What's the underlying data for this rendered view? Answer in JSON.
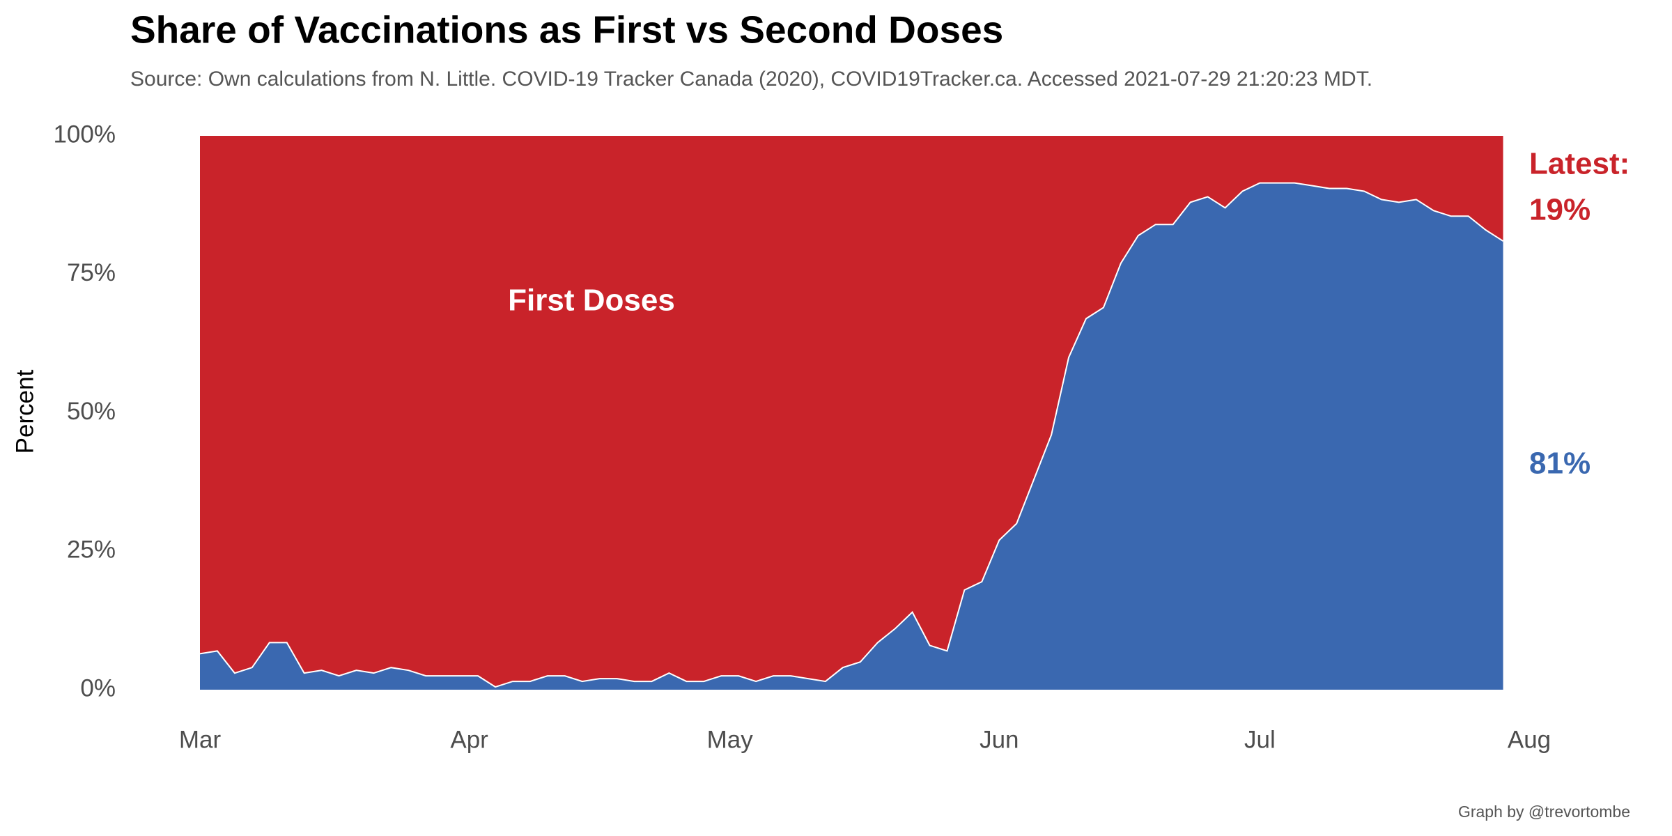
{
  "chart_data": {
    "type": "stacked_area",
    "title": "Share of Vaccinations as First vs Second Doses",
    "subtitle": "Source: Own calculations from N. Little. COVID-19 Tracker Canada (2020), COVID19Tracker.ca. Accessed 2021-07-29 21:20:23 MDT.",
    "ylabel": "Percent",
    "caption": "Graph by @trevortombe",
    "latest_label": "Latest:",
    "xlim": [
      0,
      153
    ],
    "xticks": [
      {
        "value": 0,
        "label": "Mar"
      },
      {
        "value": 31,
        "label": "Apr"
      },
      {
        "value": 61,
        "label": "May"
      },
      {
        "value": 92,
        "label": "Jun"
      },
      {
        "value": 122,
        "label": "Jul"
      },
      {
        "value": 153,
        "label": "Aug"
      }
    ],
    "ylim": [
      0,
      100
    ],
    "yticks": [
      {
        "value": 0,
        "label": "0%"
      },
      {
        "value": 25,
        "label": "25%"
      },
      {
        "value": 50,
        "label": "50%"
      },
      {
        "value": 75,
        "label": "75%"
      },
      {
        "value": 100,
        "label": "100%"
      }
    ],
    "grid": false,
    "x": [
      0,
      2,
      4,
      6,
      8,
      10,
      12,
      14,
      16,
      18,
      20,
      22,
      24,
      26,
      28,
      30,
      32,
      34,
      36,
      38,
      40,
      42,
      44,
      46,
      48,
      50,
      52,
      54,
      56,
      58,
      60,
      62,
      64,
      66,
      68,
      70,
      72,
      74,
      76,
      78,
      80,
      82,
      84,
      86,
      88,
      90,
      92,
      94,
      96,
      98,
      100,
      102,
      104,
      106,
      108,
      110,
      112,
      114,
      116,
      118,
      120,
      122,
      124,
      126,
      128,
      130,
      132,
      134,
      136,
      138,
      140,
      142,
      144,
      146,
      148,
      150
    ],
    "series": [
      {
        "color": "#3a68b0",
        "values": [
          6.5,
          7,
          3,
          4,
          8.5,
          8.5,
          3,
          3.5,
          2.5,
          3.5,
          3,
          4,
          3.5,
          2.5,
          2.5,
          2.5,
          2.5,
          0.5,
          1.5,
          1.5,
          2.5,
          2.5,
          1.5,
          2,
          2,
          1.5,
          1.5,
          3,
          1.5,
          1.5,
          2.5,
          2.5,
          1.5,
          2.5,
          2.5,
          2,
          1.5,
          4,
          5,
          8.5,
          11,
          14,
          8,
          7,
          18,
          19.5,
          27,
          30,
          38,
          46,
          60,
          67,
          69,
          77,
          82,
          84,
          84,
          88,
          89,
          87,
          90,
          91.5,
          91.5,
          91.5,
          91,
          90.5,
          90.5,
          90,
          88.5,
          88,
          88.5,
          86.5,
          85.5,
          85.5,
          83,
          81
        ],
        "value_labels": [
          null,
          null,
          null,
          null,
          null,
          null,
          null,
          null,
          null,
          null,
          null,
          null,
          null,
          null,
          null,
          null,
          null,
          null,
          null,
          null,
          null,
          null,
          null,
          null,
          null,
          null,
          null,
          null,
          null,
          null,
          null,
          null,
          null,
          null,
          null,
          null,
          null,
          null,
          null,
          null,
          null,
          null,
          null,
          null,
          null,
          null,
          null,
          null,
          null,
          null,
          null,
          null,
          null,
          null,
          null,
          null,
          null,
          null,
          null,
          null,
          null,
          null,
          null,
          null,
          null,
          null,
          null,
          null,
          null,
          null,
          null,
          null,
          null,
          null,
          null,
          "81%"
        ]
      },
      {
        "name": "First Doses",
        "color": "#c9232a",
        "values": [
          93.5,
          93,
          97,
          96,
          91.5,
          91.5,
          97,
          96.5,
          97.5,
          96.5,
          97,
          96,
          96.5,
          97.5,
          97.5,
          97.5,
          97.5,
          99.5,
          98.5,
          98.5,
          97.5,
          97.5,
          98.5,
          98,
          98,
          98.5,
          98.5,
          97,
          98.5,
          98.5,
          97.5,
          97.5,
          98.5,
          97.5,
          97.5,
          98,
          98.5,
          96,
          95,
          91.5,
          89,
          86,
          92,
          93,
          82,
          80.5,
          73,
          70,
          62,
          54,
          40,
          33,
          31,
          23,
          18,
          16,
          16,
          12,
          11,
          13,
          10,
          8.5,
          8.5,
          8.5,
          9,
          9.5,
          9.5,
          10,
          11.5,
          12,
          11.5,
          13.5,
          14.5,
          14.5,
          17,
          19
        ],
        "value_labels": [
          null,
          null,
          null,
          null,
          null,
          null,
          null,
          null,
          null,
          null,
          null,
          null,
          null,
          null,
          null,
          null,
          null,
          null,
          null,
          null,
          null,
          null,
          null,
          null,
          null,
          null,
          null,
          null,
          null,
          null,
          null,
          null,
          null,
          null,
          null,
          null,
          null,
          null,
          null,
          null,
          null,
          null,
          null,
          null,
          null,
          null,
          null,
          null,
          null,
          null,
          null,
          null,
          null,
          null,
          null,
          null,
          null,
          null,
          null,
          null,
          null,
          null,
          null,
          null,
          null,
          null,
          null,
          null,
          null,
          null,
          null,
          null,
          null,
          null,
          null,
          "19%"
        ]
      }
    ]
  }
}
